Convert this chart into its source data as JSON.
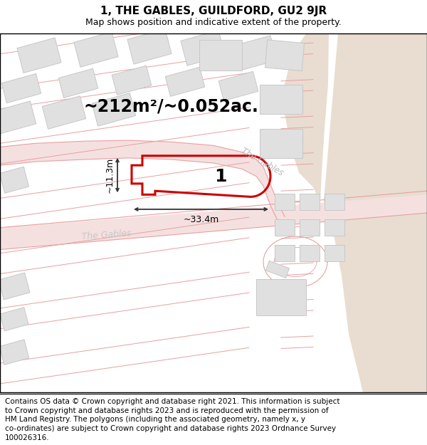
{
  "title": "1, THE GABLES, GUILDFORD, GU2 9JR",
  "subtitle": "Map shows position and indicative extent of the property.",
  "area_label": "~212m²/~0.052ac.",
  "width_label": "~33.4m",
  "height_label": "~11.3m",
  "plot_number": "1",
  "road_label_center": "The Gables",
  "road_label_bottom": "The Gables",
  "bg_color": "#ffffff",
  "map_bg": "#f7f4f0",
  "road_fill": "#f5e0e0",
  "road_line": "#e8a0a0",
  "building_fill": "#e0e0e0",
  "building_edge": "#c8c8c8",
  "plot_fill": "none",
  "plot_edge": "#cc0000",
  "tan_area": "#e8ddd0",
  "white_road": "#ffffff",
  "footer_text": "Contains OS data © Crown copyright and database right 2021. This information is subject to Crown copyright and database rights 2023 and is reproduced with the permission of HM Land Registry. The polygons (including the associated geometry, namely x, y co-ordinates) are subject to Crown copyright and database rights 2023 Ordnance Survey 100026316.",
  "title_fontsize": 11,
  "subtitle_fontsize": 9,
  "footer_fontsize": 7.5,
  "label_fontsize": 17,
  "dim_fontsize": 9,
  "road_text_size": 8.5,
  "plot_num_fontsize": 18
}
